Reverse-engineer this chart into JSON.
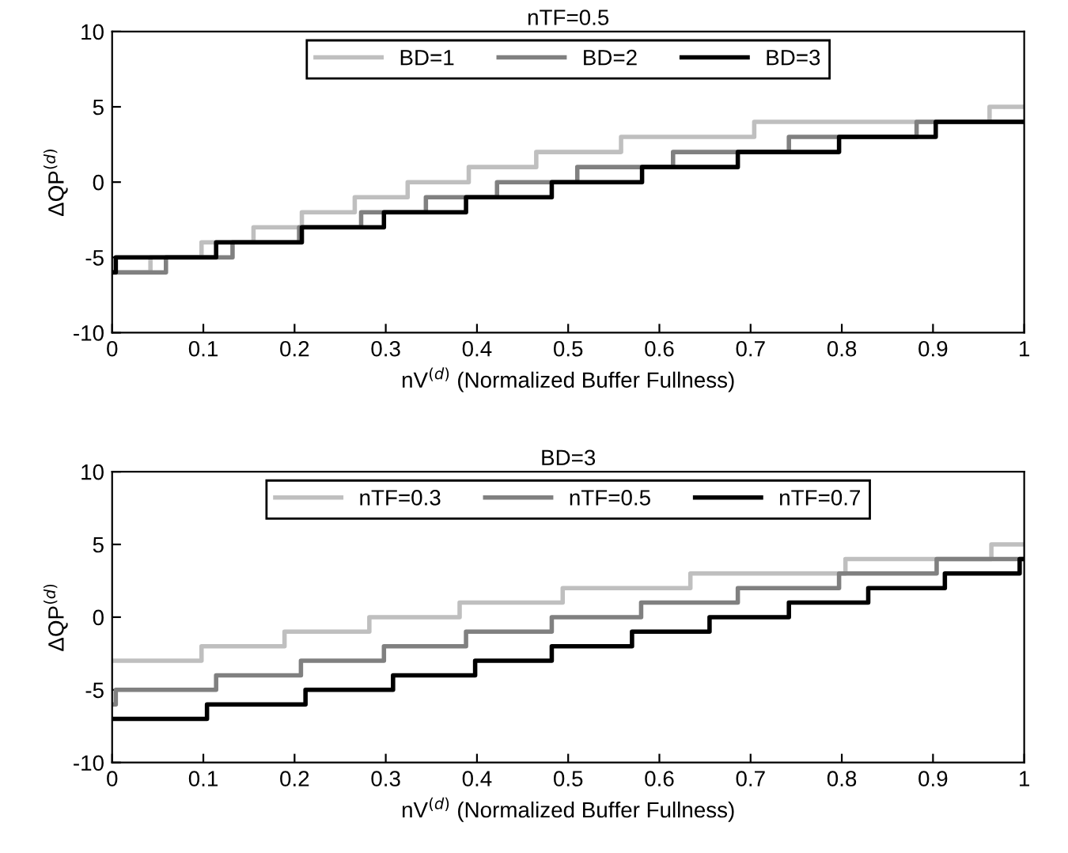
{
  "chart_data": [
    {
      "type": "step",
      "title": "nTF=0.5",
      "xlabel": "nV$^{(d)}$ (Normalized Buffer Fullness)",
      "ylabel": "ΔQP$^{(d)}$",
      "xlim": [
        0,
        1
      ],
      "ylim": [
        -10,
        10
      ],
      "xticks": [
        0,
        0.1,
        0.2,
        0.3,
        0.4,
        0.5,
        0.6,
        0.7,
        0.8,
        0.9,
        1
      ],
      "yticks": [
        -10,
        -5,
        0,
        5,
        10
      ],
      "grid": false,
      "legend": "top",
      "series": [
        {
          "name": "BD=1",
          "color": "#bfbfbf",
          "x": [
            0,
            0.042,
            0.098,
            0.155,
            0.208,
            0.266,
            0.324,
            0.391,
            0.465,
            0.558,
            0.704,
            0.962,
            1
          ],
          "values": [
            -6,
            -5,
            -4,
            -3,
            -2,
            -1,
            0,
            1,
            2,
            3,
            4,
            5,
            5
          ]
        },
        {
          "name": "BD=2",
          "color": "#808080",
          "x": [
            0,
            0.059,
            0.132,
            0.205,
            0.273,
            0.344,
            0.422,
            0.51,
            0.615,
            0.742,
            0.882,
            1
          ],
          "values": [
            -6,
            -5,
            -4,
            -3,
            -2,
            -1,
            0,
            1,
            2,
            3,
            4,
            4
          ]
        },
        {
          "name": "BD=3",
          "color": "#000000",
          "x": [
            0,
            0.004,
            0.114,
            0.208,
            0.298,
            0.388,
            0.482,
            0.581,
            0.686,
            0.797,
            0.903,
            1
          ],
          "values": [
            -6,
            -5,
            -4,
            -3,
            -2,
            -1,
            0,
            1,
            2,
            3,
            4,
            4
          ]
        }
      ]
    },
    {
      "type": "step",
      "title": "BD=3",
      "xlabel": "nV$^{(d)}$ (Normalized Buffer Fullness)",
      "ylabel": "ΔQP$^{(d)}$",
      "xlim": [
        0,
        1
      ],
      "ylim": [
        -10,
        10
      ],
      "xticks": [
        0,
        0.1,
        0.2,
        0.3,
        0.4,
        0.5,
        0.6,
        0.7,
        0.8,
        0.9,
        1
      ],
      "yticks": [
        -10,
        -5,
        0,
        5,
        10
      ],
      "grid": false,
      "legend": "top",
      "series": [
        {
          "name": "nTF=0.3",
          "color": "#bfbfbf",
          "x": [
            0,
            0.098,
            0.189,
            0.282,
            0.381,
            0.494,
            0.634,
            0.804,
            0.964,
            1
          ],
          "values": [
            -3,
            -2,
            -1,
            0,
            1,
            2,
            3,
            4,
            5,
            5
          ]
        },
        {
          "name": "nTF=0.5",
          "color": "#808080",
          "x": [
            0,
            0.004,
            0.114,
            0.207,
            0.298,
            0.388,
            0.482,
            0.58,
            0.686,
            0.797,
            0.904,
            1
          ],
          "values": [
            -6,
            -5,
            -4,
            -3,
            -2,
            -1,
            0,
            1,
            2,
            3,
            4,
            4
          ]
        },
        {
          "name": "nTF=0.7",
          "color": "#000000",
          "x": [
            0,
            0.104,
            0.212,
            0.308,
            0.398,
            0.482,
            0.57,
            0.655,
            0.742,
            0.829,
            0.913,
            0.995,
            1
          ],
          "values": [
            -7,
            -6,
            -5,
            -4,
            -3,
            -2,
            -1,
            0,
            1,
            2,
            3,
            4,
            4
          ]
        }
      ]
    }
  ]
}
